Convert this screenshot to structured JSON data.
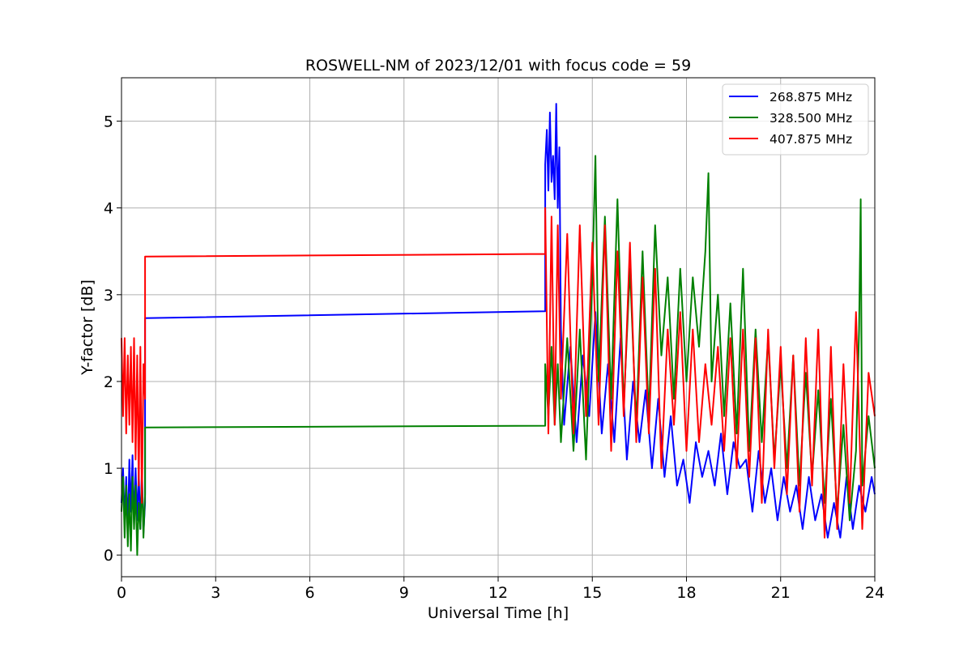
{
  "chart_data": {
    "type": "line",
    "title": "ROSWELL-NM of 2023/12/01 with focus code = 59",
    "xlabel": "Universal Time [h]",
    "ylabel": "Y-factor [dB]",
    "xlim": [
      0,
      24
    ],
    "ylim": [
      -0.25,
      5.5
    ],
    "xticks": [
      0,
      3,
      6,
      9,
      12,
      15,
      18,
      21,
      24
    ],
    "xtick_labels": [
      "0",
      "3",
      "6",
      "9",
      "12",
      "15",
      "18",
      "21",
      "24"
    ],
    "yticks": [
      0,
      1,
      2,
      3,
      4,
      5
    ],
    "ytick_labels": [
      "0",
      "1",
      "2",
      "3",
      "4",
      "5"
    ],
    "grid": true,
    "legend_position": "top-right",
    "series": [
      {
        "name": "268.875 MHz",
        "color": "#0000ff",
        "x": [
          0.0,
          0.05,
          0.1,
          0.15,
          0.2,
          0.25,
          0.3,
          0.35,
          0.4,
          0.45,
          0.5,
          0.55,
          0.6,
          0.65,
          0.7,
          0.75,
          0.75,
          13.5,
          13.5,
          13.55,
          13.6,
          13.65,
          13.7,
          13.75,
          13.8,
          13.85,
          13.9,
          13.95,
          14.0,
          14.1,
          14.3,
          14.5,
          14.7,
          14.9,
          15.1,
          15.3,
          15.5,
          15.7,
          15.9,
          16.1,
          16.3,
          16.5,
          16.7,
          16.9,
          17.1,
          17.3,
          17.5,
          17.7,
          17.9,
          18.1,
          18.3,
          18.5,
          18.7,
          18.9,
          19.1,
          19.3,
          19.5,
          19.7,
          19.9,
          20.1,
          20.3,
          20.5,
          20.7,
          20.9,
          21.1,
          21.3,
          21.5,
          21.7,
          21.9,
          22.1,
          22.3,
          22.5,
          22.7,
          22.9,
          23.1,
          23.3,
          23.5,
          23.7,
          23.9,
          24.0
        ],
        "y": [
          0.6,
          1.0,
          0.4,
          0.9,
          0.3,
          1.1,
          0.5,
          1.15,
          0.35,
          1.0,
          0.4,
          0.95,
          0.3,
          1.0,
          0.25,
          0.6,
          2.73,
          2.81,
          4.5,
          4.9,
          4.2,
          5.1,
          4.3,
          4.6,
          4.1,
          5.2,
          4.0,
          4.7,
          2.6,
          1.5,
          2.4,
          1.3,
          2.3,
          1.6,
          2.8,
          1.4,
          2.2,
          1.3,
          2.5,
          1.1,
          2.0,
          1.3,
          1.9,
          1.0,
          1.8,
          0.9,
          1.6,
          0.8,
          1.1,
          0.6,
          1.3,
          0.9,
          1.2,
          0.8,
          1.4,
          0.7,
          1.3,
          1.0,
          1.1,
          0.5,
          1.2,
          0.6,
          1.0,
          0.4,
          0.9,
          0.5,
          0.8,
          0.3,
          0.9,
          0.4,
          0.7,
          0.2,
          0.6,
          0.2,
          0.9,
          0.3,
          0.8,
          0.5,
          0.9,
          0.7
        ]
      },
      {
        "name": "328.500 MHz",
        "color": "#008000",
        "x": [
          0.0,
          0.05,
          0.1,
          0.15,
          0.2,
          0.25,
          0.3,
          0.35,
          0.4,
          0.45,
          0.5,
          0.55,
          0.6,
          0.65,
          0.7,
          0.75,
          0.75,
          13.5,
          13.5,
          13.6,
          13.7,
          13.8,
          13.9,
          14.0,
          14.2,
          14.4,
          14.6,
          14.8,
          15.0,
          15.1,
          15.2,
          15.4,
          15.6,
          15.8,
          16.0,
          16.2,
          16.4,
          16.6,
          16.8,
          17.0,
          17.2,
          17.4,
          17.6,
          17.8,
          18.0,
          18.2,
          18.4,
          18.6,
          18.7,
          18.8,
          19.0,
          19.2,
          19.4,
          19.6,
          19.8,
          20.0,
          20.2,
          20.4,
          20.6,
          20.8,
          21.0,
          21.2,
          21.4,
          21.6,
          21.8,
          22.0,
          22.2,
          22.4,
          22.6,
          22.8,
          23.0,
          23.2,
          23.4,
          23.5,
          23.55,
          23.6,
          23.8,
          24.0
        ],
        "y": [
          0.5,
          0.9,
          0.2,
          0.8,
          0.1,
          0.7,
          0.05,
          0.9,
          0.3,
          0.8,
          0.0,
          0.6,
          0.3,
          0.9,
          0.2,
          0.7,
          1.47,
          1.49,
          2.2,
          1.6,
          2.4,
          1.5,
          2.2,
          1.3,
          2.5,
          1.2,
          2.6,
          1.1,
          3.2,
          4.6,
          2.0,
          3.9,
          1.8,
          4.1,
          1.7,
          3.3,
          1.5,
          3.5,
          1.6,
          3.8,
          2.3,
          3.2,
          1.8,
          3.3,
          2.0,
          3.2,
          2.4,
          3.5,
          4.4,
          2.0,
          3.0,
          1.6,
          2.9,
          1.4,
          3.3,
          1.2,
          2.6,
          1.3,
          2.5,
          1.1,
          2.2,
          1.0,
          2.3,
          0.8,
          2.1,
          0.9,
          1.9,
          0.6,
          1.8,
          0.5,
          1.5,
          0.4,
          1.2,
          2.6,
          4.1,
          0.8,
          1.6,
          1.0
        ]
      },
      {
        "name": "407.875 MHz",
        "color": "#ff0000",
        "x": [
          0.0,
          0.05,
          0.1,
          0.15,
          0.2,
          0.25,
          0.3,
          0.35,
          0.4,
          0.45,
          0.5,
          0.55,
          0.6,
          0.65,
          0.7,
          0.75,
          0.75,
          13.5,
          13.5,
          13.6,
          13.7,
          13.8,
          13.9,
          14.0,
          14.2,
          14.4,
          14.6,
          14.8,
          15.0,
          15.2,
          15.4,
          15.6,
          15.8,
          16.0,
          16.2,
          16.4,
          16.6,
          16.8,
          17.0,
          17.2,
          17.4,
          17.6,
          17.8,
          18.0,
          18.2,
          18.4,
          18.6,
          18.8,
          19.0,
          19.2,
          19.4,
          19.6,
          19.8,
          20.0,
          20.2,
          20.4,
          20.6,
          20.8,
          21.0,
          21.2,
          21.4,
          21.6,
          21.8,
          22.0,
          22.2,
          22.4,
          22.6,
          22.8,
          23.0,
          23.2,
          23.4,
          23.6,
          23.8,
          24.0
        ],
        "y": [
          2.5,
          1.6,
          2.5,
          1.4,
          2.3,
          1.5,
          2.4,
          1.3,
          2.5,
          1.1,
          2.3,
          0.8,
          2.4,
          0.6,
          2.2,
          1.8,
          3.44,
          3.47,
          4.0,
          1.4,
          3.9,
          1.5,
          3.8,
          1.8,
          3.7,
          1.4,
          3.8,
          1.6,
          3.6,
          1.5,
          3.8,
          1.2,
          3.5,
          1.6,
          3.6,
          1.3,
          3.2,
          1.4,
          3.3,
          1.0,
          2.6,
          1.5,
          2.8,
          1.2,
          2.6,
          1.3,
          2.2,
          1.5,
          2.4,
          1.2,
          2.5,
          1.0,
          2.6,
          0.9,
          2.5,
          0.6,
          2.6,
          1.0,
          2.4,
          0.7,
          2.3,
          0.5,
          2.5,
          0.8,
          2.6,
          0.2,
          2.4,
          0.3,
          2.2,
          0.6,
          2.8,
          0.3,
          2.1,
          1.6
        ]
      }
    ]
  }
}
